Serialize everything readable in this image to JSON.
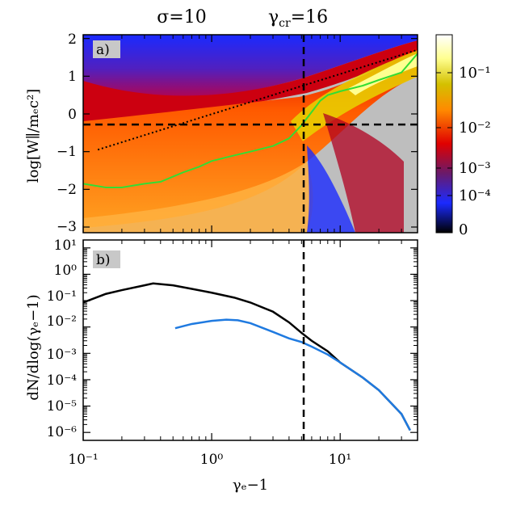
{
  "header": {
    "sigma_label": "σ=10",
    "gamma_cr_label": "γ",
    "gamma_cr_sub": "cr",
    "gamma_cr_value": "=16"
  },
  "chart_data": [
    {
      "panel": "a)",
      "type": "heatmap",
      "ylabel": "log[W∥/mₑc²]",
      "x_scale": "log",
      "xlim": [
        0.1,
        40
      ],
      "ylim": [
        -3.15,
        2.1
      ],
      "y_ticks": [
        "2",
        "1",
        "0",
        "−1",
        "−2",
        "−3"
      ],
      "background": "#bebebe",
      "colorbar": {
        "tick_labels": [
          "10⁻¹",
          "10⁻²",
          "10⁻³",
          "10⁻⁴",
          "0"
        ],
        "colors": [
          "#ffffff",
          "#ffff90",
          "#d4c000",
          "#ff8a00",
          "#e00000",
          "#6a1a6a",
          "#1a2aff",
          "#000000"
        ]
      },
      "overlays": {
        "green_line": {
          "x": [
            0.1,
            0.15,
            0.2,
            0.3,
            0.4,
            0.6,
            0.8,
            1.0,
            1.5,
            2,
            3,
            4,
            5,
            6,
            7,
            8,
            10,
            15,
            20,
            30,
            40
          ],
          "y": [
            -1.85,
            -1.95,
            -1.95,
            -1.85,
            -1.8,
            -1.55,
            -1.4,
            -1.25,
            -1.1,
            -1.0,
            -0.85,
            -0.65,
            -0.3,
            0.05,
            0.35,
            0.5,
            0.6,
            0.75,
            0.9,
            1.1,
            1.6
          ]
        },
        "dotted_line": {
          "x": [
            0.13,
            40
          ],
          "y": [
            -0.95,
            1.7
          ]
        },
        "dashed_horizontal_y": -0.28,
        "dashed_vertical_x": 5.2
      }
    },
    {
      "panel": "b)",
      "type": "line",
      "ylabel": "dN/dlog(γₑ−1)",
      "xlabel": "γₑ−1",
      "x_scale": "log",
      "y_scale": "log",
      "xlim": [
        0.1,
        40
      ],
      "ylim": [
        5e-07,
        20
      ],
      "x_ticks": [
        "10⁻¹",
        "10⁰",
        "10¹"
      ],
      "y_ticks": [
        "10¹",
        "10⁰",
        "10⁻¹",
        "10⁻²",
        "10⁻³",
        "10⁻⁴",
        "10⁻⁵",
        "10⁻⁶"
      ],
      "series": [
        {
          "color": "#000000",
          "x": [
            0.1,
            0.15,
            0.2,
            0.3,
            0.35,
            0.5,
            0.7,
            1.0,
            1.5,
            2,
            3,
            4,
            5,
            6,
            8,
            10,
            15,
            20,
            30,
            35
          ],
          "y": [
            0.085,
            0.18,
            0.25,
            0.38,
            0.45,
            0.38,
            0.28,
            0.2,
            0.13,
            0.085,
            0.038,
            0.015,
            0.006,
            0.003,
            0.0012,
            0.00045,
            0.00012,
            4e-05,
            5e-06,
            1.2e-06
          ]
        },
        {
          "color": "#1f7ae0",
          "x": [
            0.52,
            0.7,
            1.0,
            1.3,
            1.6,
            2,
            3,
            4,
            5,
            6,
            8,
            10,
            15,
            20,
            30,
            35
          ],
          "y": [
            0.009,
            0.013,
            0.017,
            0.019,
            0.018,
            0.014,
            0.0065,
            0.0037,
            0.0027,
            0.0018,
            0.0009,
            0.00045,
            0.00012,
            4e-05,
            5e-06,
            1.2e-06
          ]
        }
      ],
      "dashed_vertical_x": 5.2
    }
  ]
}
